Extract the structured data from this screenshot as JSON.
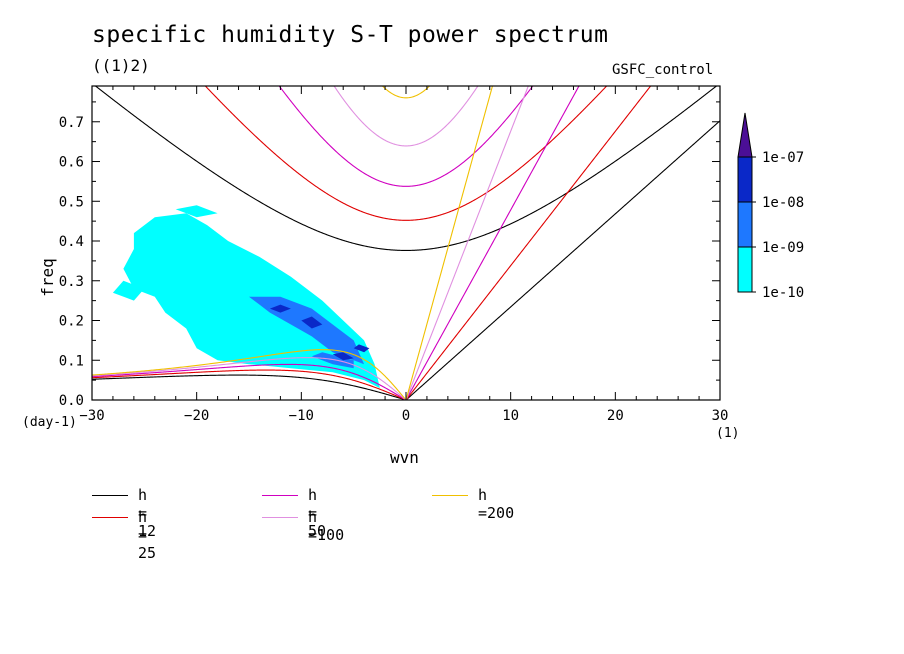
{
  "chart_data": {
    "type": "heatmap",
    "title": "specific humidity S-T power spectrum",
    "subtitle": "((1)2)",
    "dataset_label": "GSFC_control",
    "xlabel": "wvn",
    "ylabel": "freq",
    "x_unit": "(1)",
    "y_unit": "(day-1)",
    "xlim": [
      -30,
      30
    ],
    "ylim": [
      0,
      0.79
    ],
    "x_ticks": [
      -30,
      -20,
      -10,
      0,
      10,
      20,
      30
    ],
    "y_ticks": [
      0.0,
      0.1,
      0.2,
      0.3,
      0.4,
      0.5,
      0.6,
      0.7
    ],
    "y_tick_labels": [
      "0.0",
      "0.1",
      "0.2",
      "0.3",
      "0.4",
      "0.5",
      "0.6",
      "0.7"
    ],
    "colorbar": {
      "levels": [
        "1e-10",
        "1e-09",
        "1e-08",
        "1e-07"
      ],
      "colors": [
        "#00ffff",
        "#1e78ff",
        "#0a28c8",
        "#4b0f96"
      ]
    },
    "power_regions": [
      {
        "level": 0,
        "points": [
          [
            -26,
            0.38
          ],
          [
            -27,
            0.33
          ],
          [
            -26,
            0.28
          ],
          [
            -24,
            0.26
          ],
          [
            -23,
            0.22
          ],
          [
            -21,
            0.18
          ],
          [
            -20,
            0.13
          ],
          [
            -18,
            0.1
          ],
          [
            -15,
            0.09
          ],
          [
            -11,
            0.08
          ],
          [
            -7,
            0.07
          ],
          [
            -4,
            0.05
          ],
          [
            -2.5,
            0.03
          ],
          [
            -3,
            0.09
          ],
          [
            -4,
            0.15
          ],
          [
            -6,
            0.2
          ],
          [
            -8,
            0.25
          ],
          [
            -11,
            0.31
          ],
          [
            -14,
            0.36
          ],
          [
            -17,
            0.4
          ],
          [
            -19,
            0.44
          ],
          [
            -21,
            0.47
          ],
          [
            -24,
            0.46
          ],
          [
            -26,
            0.42
          ]
        ]
      },
      {
        "level": 0,
        "points": [
          [
            -27,
            0.3
          ],
          [
            -28,
            0.27
          ],
          [
            -26,
            0.25
          ],
          [
            -25,
            0.28
          ]
        ]
      },
      {
        "level": 0,
        "points": [
          [
            -22,
            0.48
          ],
          [
            -20,
            0.49
          ],
          [
            -18,
            0.47
          ],
          [
            -20,
            0.46
          ]
        ]
      },
      {
        "level": 1,
        "points": [
          [
            -15,
            0.26
          ],
          [
            -14,
            0.24
          ],
          [
            -13,
            0.22
          ],
          [
            -11,
            0.19
          ],
          [
            -9,
            0.16
          ],
          [
            -7,
            0.12
          ],
          [
            -5,
            0.1
          ],
          [
            -4,
            0.09
          ],
          [
            -5,
            0.15
          ],
          [
            -7,
            0.19
          ],
          [
            -9,
            0.23
          ],
          [
            -12,
            0.26
          ]
        ]
      },
      {
        "level": 1,
        "points": [
          [
            -9,
            0.11
          ],
          [
            -7,
            0.09
          ],
          [
            -5,
            0.08
          ],
          [
            -5,
            0.1
          ],
          [
            -8,
            0.12
          ]
        ]
      },
      {
        "level": 2,
        "points": [
          [
            -7,
            0.115
          ],
          [
            -6,
            0.1
          ],
          [
            -5,
            0.105
          ],
          [
            -6,
            0.12
          ]
        ]
      },
      {
        "level": 2,
        "points": [
          [
            -10,
            0.2
          ],
          [
            -9,
            0.18
          ],
          [
            -8,
            0.19
          ],
          [
            -9,
            0.21
          ]
        ]
      },
      {
        "level": 2,
        "points": [
          [
            -13,
            0.23
          ],
          [
            -12,
            0.22
          ],
          [
            -11,
            0.23
          ],
          [
            -12,
            0.24
          ]
        ]
      },
      {
        "level": 2,
        "points": [
          [
            -5,
            0.13
          ],
          [
            -4,
            0.12
          ],
          [
            -3.5,
            0.13
          ],
          [
            -4.5,
            0.14
          ]
        ]
      }
    ],
    "dispersion_equivalent_depths": [
      {
        "h": 12,
        "color": "#000000"
      },
      {
        "h": 25,
        "color": "#e00000"
      },
      {
        "h": 50,
        "color": "#d000c0"
      },
      {
        "h": 100,
        "color": "#e090e0"
      },
      {
        "h": 200,
        "color": "#f0c000"
      }
    ],
    "legend": [
      {
        "label": "h = 12",
        "color": "#000000"
      },
      {
        "label": "h = 25",
        "color": "#e00000"
      },
      {
        "label": "h = 50",
        "color": "#d000c0"
      },
      {
        "label": "h =100",
        "color": "#e090e0"
      },
      {
        "label": "h =200",
        "color": "#f0c000"
      }
    ]
  }
}
